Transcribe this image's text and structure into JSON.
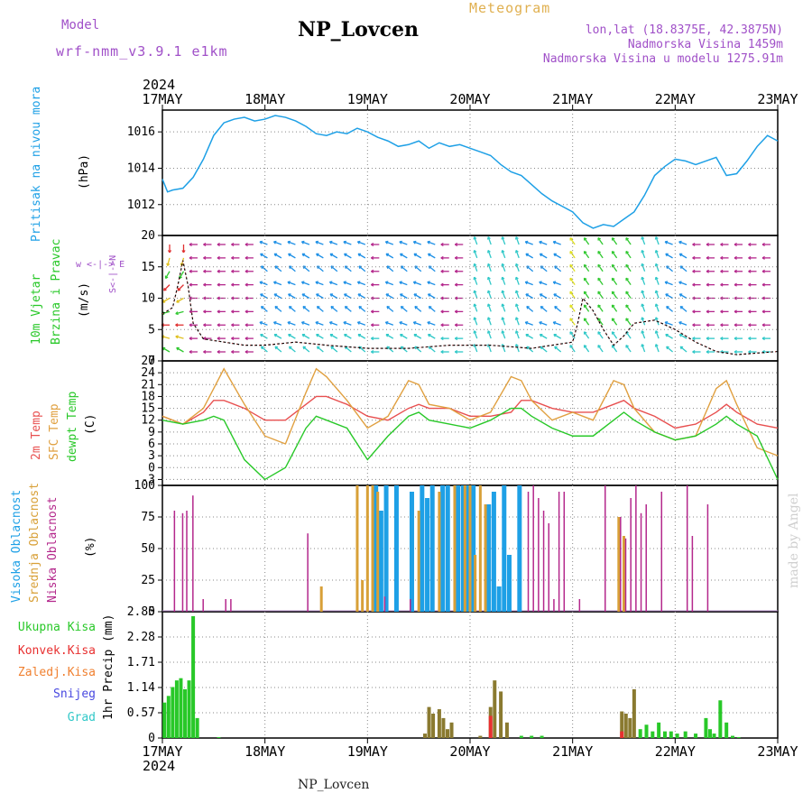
{
  "header": {
    "title": "NP_Lovcen",
    "model_label": "Model",
    "model_name": "wrf-nmm_v3.9.1 e1km",
    "meteogram": "Meteogram",
    "lonlat": "lon,lat (18.8375E, 42.3875N)",
    "elevation": "Nadmorska Visina 1459m",
    "model_elevation": "Nadmorska Visina u modelu 1275.91m",
    "footer": "NP_Lovcen",
    "credit": "made by Angel"
  },
  "colors": {
    "pressure": "#1ea0e6",
    "temp2m": "#e85050",
    "sfc": "#e0a040",
    "dewpt": "#28c828",
    "high_cloud": "#1ea0e6",
    "mid_cloud": "#d8a038",
    "low_cloud": "#b4288c",
    "total_rain": "#28c828",
    "conv_rain": "#e83030",
    "frozen": "#f08030",
    "snow": "#4848e0",
    "grad": "#30c8c8",
    "purple_text": "#a050c8",
    "orange_text": "#e0b050"
  },
  "time_axis": {
    "year": "2024",
    "days": [
      "17MAY",
      "18MAY",
      "19MAY",
      "20MAY",
      "21MAY",
      "22MAY",
      "23MAY"
    ]
  },
  "panels": {
    "pressure": {
      "ylabel": "Pritisak na nivou mora",
      "unit": "(hPa)"
    },
    "wind": {
      "ylabel1": "10m Vjetar",
      "ylabel2": "Brzina i Pravac",
      "unit": "(m/s)",
      "compass": "w <-|-> E",
      "compass_ns": "S<-|->N"
    },
    "temp": {
      "label_t2m": "2m Temp",
      "label_sfc": "SFC Temp",
      "label_dew": "dewpt Temp",
      "unit": "(C)"
    },
    "cloud": {
      "label_high": "Visoka Oblacnost",
      "label_mid": "Srednja Oblacnost",
      "label_low": "Niska Oblacnost",
      "unit": "(%)"
    },
    "precip": {
      "legend": [
        "Ukupna Kisa",
        "Konvek.Kisa",
        "Zaledj.Kisa",
        "Snijeg",
        "Grad"
      ],
      "ylabel": "1hr Precip (mm)"
    }
  },
  "chart_data": [
    {
      "type": "line",
      "name": "pressure",
      "ylim": [
        1010.3,
        1017.2
      ],
      "yticks": [
        1012,
        1014,
        1016
      ],
      "x_days": [
        0,
        0.05,
        0.1,
        0.2,
        0.3,
        0.4,
        0.5,
        0.6,
        0.7,
        0.8,
        0.9,
        1.0,
        1.1,
        1.2,
        1.3,
        1.4,
        1.5,
        1.6,
        1.7,
        1.8,
        1.9,
        2.0,
        2.1,
        2.2,
        2.3,
        2.4,
        2.5,
        2.6,
        2.7,
        2.8,
        2.9,
        3.0,
        3.1,
        3.2,
        3.3,
        3.4,
        3.5,
        3.6,
        3.7,
        3.8,
        3.9,
        4.0,
        4.1,
        4.2,
        4.3,
        4.4,
        4.5,
        4.6,
        4.7,
        4.8,
        4.9,
        5.0,
        5.1,
        5.2,
        5.3,
        5.4,
        5.5,
        5.6,
        5.7,
        5.8,
        5.9,
        6.0
      ],
      "values": [
        1013.4,
        1012.7,
        1012.8,
        1012.9,
        1013.5,
        1014.5,
        1015.8,
        1016.5,
        1016.7,
        1016.8,
        1016.6,
        1016.7,
        1016.9,
        1016.8,
        1016.6,
        1016.3,
        1015.9,
        1015.8,
        1016.0,
        1015.9,
        1016.2,
        1016.0,
        1015.7,
        1015.5,
        1015.2,
        1015.3,
        1015.5,
        1015.1,
        1015.4,
        1015.2,
        1015.3,
        1015.1,
        1014.9,
        1014.7,
        1014.2,
        1013.8,
        1013.6,
        1013.1,
        1012.6,
        1012.2,
        1011.9,
        1011.6,
        1011.0,
        1010.7,
        1010.9,
        1010.8,
        1011.2,
        1011.6,
        1012.5,
        1013.6,
        1014.1,
        1014.5,
        1014.4,
        1014.2,
        1014.4,
        1014.6,
        1013.6,
        1013.7,
        1014.4,
        1015.2,
        1015.8,
        1015.5
      ]
    },
    {
      "type": "line",
      "name": "wind",
      "ylim": [
        0,
        20
      ],
      "yticks": [
        0,
        5,
        10,
        15,
        20
      ],
      "x_days": [
        0,
        0.1,
        0.15,
        0.2,
        0.25,
        0.3,
        0.4,
        0.6,
        0.8,
        1.0,
        1.3,
        1.6,
        2.0,
        2.4,
        2.8,
        3.2,
        3.6,
        4.0,
        4.05,
        4.1,
        4.2,
        4.3,
        4.4,
        4.5,
        4.6,
        4.8,
        5.0,
        5.2,
        5.4,
        5.6,
        6.0
      ],
      "values": [
        7.5,
        8.5,
        12,
        16,
        12,
        6,
        3.5,
        3,
        2.5,
        2.5,
        3,
        2.5,
        2,
        2,
        2.5,
        2.5,
        2,
        3,
        6,
        10,
        8,
        5,
        2.5,
        4,
        6,
        6.5,
        5,
        3,
        1.5,
        1,
        1.5
      ]
    },
    {
      "type": "line",
      "name": "temperature",
      "ylim": [
        -4.5,
        27
      ],
      "yticks": [
        -3,
        0,
        3,
        6,
        9,
        12,
        15,
        18,
        21,
        24,
        27
      ],
      "x_days": [
        0,
        0.2,
        0.4,
        0.5,
        0.6,
        0.8,
        1.0,
        1.2,
        1.4,
        1.5,
        1.6,
        1.8,
        2.0,
        2.2,
        2.4,
        2.5,
        2.6,
        2.8,
        3.0,
        3.2,
        3.4,
        3.5,
        3.6,
        3.8,
        4.0,
        4.2,
        4.4,
        4.5,
        4.6,
        4.8,
        5.0,
        5.2,
        5.4,
        5.5,
        5.6,
        5.8,
        6.0
      ],
      "series": [
        {
          "name": "2m Temp",
          "values": [
            13,
            11,
            14,
            17,
            17,
            15,
            12,
            12,
            16,
            18,
            18,
            16,
            13,
            12,
            15,
            16,
            15,
            15,
            13,
            13,
            14,
            17,
            17,
            15,
            14,
            14,
            16,
            17,
            15,
            13,
            10,
            11,
            14,
            16,
            14,
            11,
            10
          ]
        },
        {
          "name": "SFC Temp",
          "values": [
            13,
            11,
            15,
            20,
            25,
            16,
            8,
            6,
            19,
            25,
            23,
            17,
            10,
            13,
            22,
            21,
            16,
            15,
            12,
            14,
            23,
            22,
            17,
            12,
            14,
            12,
            22,
            21,
            15,
            9,
            7,
            8,
            20,
            22,
            16,
            5,
            3
          ]
        },
        {
          "name": "dewpt Temp",
          "values": [
            12,
            11,
            12,
            13,
            12,
            2,
            -3,
            0,
            10,
            13,
            12,
            10,
            2,
            8,
            13,
            14,
            12,
            11,
            10,
            12,
            15,
            15,
            13,
            10,
            8,
            8,
            12,
            14,
            12,
            9,
            7,
            8,
            11,
            13,
            11,
            8,
            -3
          ]
        }
      ]
    },
    {
      "type": "bar",
      "name": "cloud_cover",
      "ylim": [
        0,
        100
      ],
      "yticks": [
        0,
        25,
        50,
        75,
        100
      ],
      "x_days": [
        0.1,
        0.18,
        0.22,
        0.28,
        0.38,
        0.6,
        0.65,
        1.4,
        1.55,
        1.9,
        1.95,
        2.0,
        2.05,
        2.1,
        2.15,
        2.2,
        2.3,
        2.4,
        2.45,
        2.5,
        2.55,
        2.6,
        2.65,
        2.7,
        2.75,
        2.8,
        2.85,
        2.9,
        2.95,
        3.0,
        3.05,
        3.1,
        3.15,
        3.2,
        3.25,
        3.3,
        3.35,
        3.4,
        3.45,
        3.5,
        3.55,
        3.6,
        3.65,
        3.7,
        3.75,
        3.8,
        3.85,
        3.9,
        4.05,
        4.3,
        4.45,
        4.5,
        4.55,
        4.6,
        4.65,
        4.7,
        4.85,
        5.1,
        5.15,
        5.3,
        5.35,
        5.45,
        5.55
      ],
      "series": [
        {
          "name": "Visoka Oblacnost",
          "values": [
            0,
            0,
            0,
            0,
            0,
            0,
            0,
            0,
            0,
            0,
            0,
            0,
            0,
            100,
            80,
            100,
            100,
            0,
            95,
            0,
            100,
            90,
            100,
            0,
            100,
            100,
            0,
            100,
            100,
            100,
            100,
            0,
            0,
            85,
            95,
            20,
            100,
            45,
            0,
            100,
            0,
            0,
            0,
            0,
            0,
            0,
            0,
            0,
            0,
            0,
            0,
            0,
            0,
            0,
            0,
            0,
            0,
            0,
            0,
            0,
            0,
            0,
            0
          ]
        },
        {
          "name": "Srednja Oblacnost",
          "values": [
            0,
            0,
            0,
            0,
            0,
            0,
            0,
            0,
            20,
            100,
            25,
            100,
            100,
            95,
            0,
            0,
            0,
            0,
            0,
            80,
            0,
            0,
            0,
            95,
            0,
            0,
            100,
            0,
            100,
            100,
            45,
            100,
            85,
            0,
            0,
            0,
            0,
            0,
            0,
            0,
            0,
            0,
            0,
            0,
            0,
            0,
            0,
            0,
            0,
            0,
            75,
            60,
            0,
            0,
            0,
            0,
            0,
            0,
            0,
            0,
            0,
            0,
            0
          ]
        },
        {
          "name": "Niska Oblacnost",
          "values": [
            80,
            78,
            80,
            92,
            10,
            10,
            10,
            62,
            0,
            0,
            0,
            0,
            0,
            0,
            12,
            0,
            0,
            10,
            0,
            0,
            0,
            0,
            0,
            0,
            0,
            0,
            0,
            0,
            0,
            0,
            0,
            0,
            0,
            0,
            0,
            0,
            0,
            0,
            0,
            0,
            95,
            100,
            90,
            80,
            70,
            10,
            95,
            95,
            10,
            100,
            75,
            58,
            90,
            100,
            78,
            85,
            95,
            100,
            60,
            85,
            0,
            0,
            0
          ]
        }
      ]
    },
    {
      "type": "bar",
      "name": "precip",
      "ylim": [
        0,
        2.85
      ],
      "yticks": [
        0,
        0.57,
        1.14,
        1.71,
        2.28,
        2.85
      ],
      "x_days": [
        0.02,
        0.06,
        0.1,
        0.14,
        0.18,
        0.22,
        0.26,
        0.3,
        0.34,
        0.55,
        2.56,
        2.6,
        2.64,
        2.7,
        2.74,
        2.78,
        2.82,
        3.1,
        3.2,
        3.24,
        3.3,
        3.36,
        3.5,
        3.6,
        3.7,
        4.48,
        4.52,
        4.56,
        4.6,
        4.66,
        4.72,
        4.78,
        4.84,
        4.9,
        4.96,
        5.02,
        5.1,
        5.2,
        5.3,
        5.34,
        5.38,
        5.44,
        5.5,
        5.56,
        5.62
      ],
      "series": [
        {
          "name": "Ukupna Kisa",
          "values": [
            0.8,
            0.95,
            1.15,
            1.3,
            1.35,
            1.1,
            1.3,
            2.75,
            0.45,
            0.02,
            0.1,
            0.7,
            0.55,
            0.65,
            0.45,
            0.2,
            0.35,
            0.05,
            0.7,
            1.3,
            1.05,
            0.35,
            0.05,
            0.05,
            0.05,
            0.6,
            0.55,
            0.45,
            1.1,
            0.2,
            0.3,
            0.15,
            0.35,
            0.15,
            0.15,
            0.1,
            0.15,
            0.1,
            0.45,
            0.2,
            0.1,
            0.85,
            0.35,
            0.05,
            0.02
          ]
        },
        {
          "name": "Konvek.Kisa",
          "values": [
            0,
            0,
            0,
            0,
            0,
            0,
            0,
            0,
            0,
            0,
            0,
            0,
            0,
            0,
            0,
            0,
            0,
            0,
            0.5,
            0,
            0,
            0,
            0,
            0,
            0,
            0.15,
            0,
            0,
            0,
            0,
            0,
            0,
            0,
            0,
            0,
            0,
            0,
            0,
            0,
            0,
            0,
            0,
            0,
            0,
            0
          ]
        },
        {
          "name": "Zaledj.Kisa",
          "values": [
            0,
            0,
            0,
            0,
            0,
            0,
            0,
            0,
            0,
            0,
            0,
            0,
            0,
            0,
            0,
            0,
            0,
            0,
            0,
            0,
            0,
            0,
            0,
            0,
            0,
            0,
            0,
            0,
            0,
            0,
            0,
            0,
            0,
            0,
            0,
            0,
            0,
            0,
            0,
            0,
            0,
            0,
            0,
            0,
            0
          ]
        },
        {
          "name": "Snijeg",
          "values": [
            0,
            0,
            0,
            0,
            0,
            0,
            0,
            0,
            0,
            0,
            0,
            0,
            0,
            0,
            0,
            0,
            0,
            0,
            0,
            0,
            0,
            0,
            0,
            0,
            0,
            0,
            0,
            0,
            0,
            0,
            0,
            0,
            0,
            0,
            0,
            0,
            0,
            0,
            0,
            0,
            0,
            0,
            0,
            0,
            0
          ]
        },
        {
          "name": "Grad",
          "values": [
            0,
            0,
            0,
            0,
            0,
            0,
            0,
            0,
            0,
            0,
            0,
            0,
            0,
            0,
            0,
            0,
            0,
            0,
            0,
            0,
            0,
            0,
            0,
            0,
            0,
            0,
            0,
            0,
            0,
            0,
            0,
            0,
            0,
            0,
            0,
            0,
            0,
            0,
            0,
            0,
            0,
            0,
            0,
            0,
            0
          ]
        }
      ]
    }
  ]
}
